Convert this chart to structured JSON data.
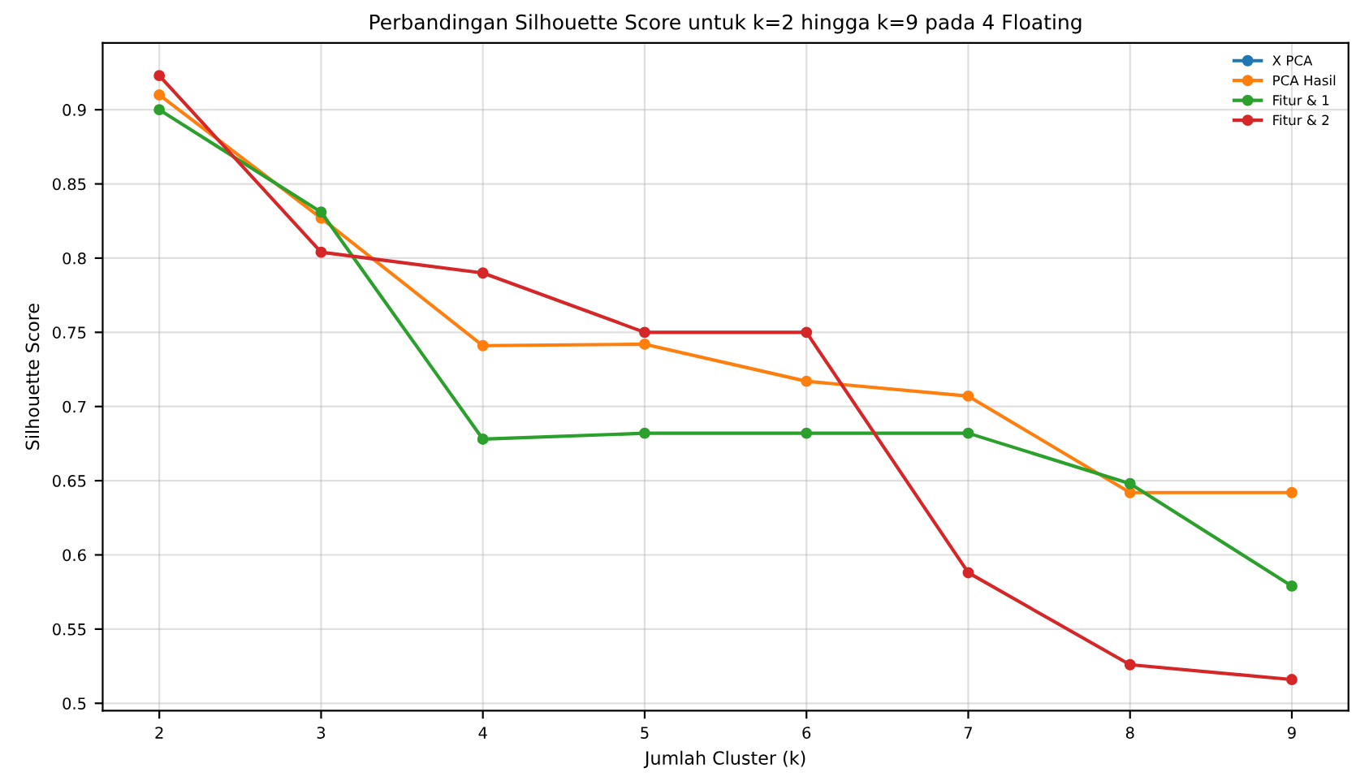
{
  "chart_data": {
    "type": "line",
    "title": "Perbandingan Silhouette Score untuk k=2 hingga k=9 pada 4 Floating",
    "xlabel": "Jumlah Cluster (k)",
    "ylabel": "Silhouette Score",
    "x": [
      2,
      3,
      4,
      5,
      6,
      7,
      8,
      9
    ],
    "series": [
      {
        "name": "X PCA",
        "color": "#1f77b4",
        "values": [
          null,
          null,
          null,
          null,
          null,
          null,
          null,
          null
        ]
      },
      {
        "name": "PCA Hasil",
        "color": "#ff7f0e",
        "values": [
          0.91,
          0.827,
          0.741,
          0.742,
          0.717,
          0.707,
          0.642,
          0.642
        ]
      },
      {
        "name": "Fitur & 1",
        "color": "#2ca02c",
        "values": [
          0.9,
          0.831,
          0.678,
          0.682,
          0.682,
          0.682,
          0.648,
          0.579
        ]
      },
      {
        "name": "Fitur & 2",
        "color": "#d62728",
        "values": [
          0.923,
          0.804,
          0.79,
          0.75,
          0.75,
          0.588,
          0.526,
          0.516
        ]
      }
    ],
    "xlim": [
      1.65,
      9.35
    ],
    "xticks": [
      2,
      3,
      4,
      5,
      6,
      7,
      8,
      9
    ],
    "ylim": [
      0.495,
      0.945
    ],
    "yticks": [
      0.5,
      0.55,
      0.6,
      0.65,
      0.7,
      0.75,
      0.8,
      0.85,
      0.9
    ],
    "grid": true,
    "legend": "top right",
    "marker": "circle",
    "line_style": "solid"
  }
}
